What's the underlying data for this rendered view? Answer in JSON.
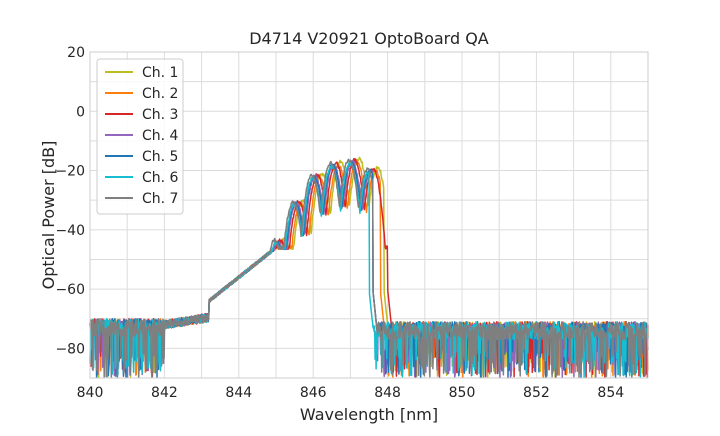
{
  "chart_data": {
    "type": "line",
    "title": "D4714 V20921 OptoBoard QA",
    "xlabel": "Wavelength [nm]",
    "ylabel": "Optical Power [dB]",
    "xlim": [
      840,
      855
    ],
    "ylim": [
      -90,
      20
    ],
    "xticks": [
      840,
      842,
      844,
      846,
      848,
      850,
      852,
      854
    ],
    "yticks": [
      20,
      0,
      -20,
      -40,
      -60,
      -80
    ],
    "xtick_labels": [
      "840",
      "842",
      "844",
      "846",
      "848",
      "850",
      "852",
      "854"
    ],
    "ytick_labels": [
      "20",
      "0",
      "−20",
      "−40",
      "−60",
      "−80"
    ],
    "grid": true,
    "legend_position": "top-left",
    "series": [
      {
        "name": "Ch. 1",
        "color": "#bcbd22",
        "shift": 0.3,
        "peak": -15,
        "edge": 847.9
      },
      {
        "name": "Ch. 2",
        "color": "#ff7f0e",
        "shift": 0.2,
        "peak": -17,
        "edge": 847.8
      },
      {
        "name": "Ch. 3",
        "color": "#d62728",
        "shift": 0.1,
        "peak": -16,
        "edge": 848.0
      },
      {
        "name": "Ch. 4",
        "color": "#9467bd",
        "shift": 0.0,
        "peak": -17,
        "edge": 847.6
      },
      {
        "name": "Ch. 5",
        "color": "#1f77b4",
        "shift": -0.05,
        "peak": -17,
        "edge": 847.6
      },
      {
        "name": "Ch. 6",
        "color": "#17becf",
        "shift": -0.1,
        "peak": -18,
        "edge": 847.5
      },
      {
        "name": "Ch. 7",
        "color": "#7f7f7f",
        "shift": -0.15,
        "peak": -16,
        "edge": 847.6
      }
    ]
  }
}
